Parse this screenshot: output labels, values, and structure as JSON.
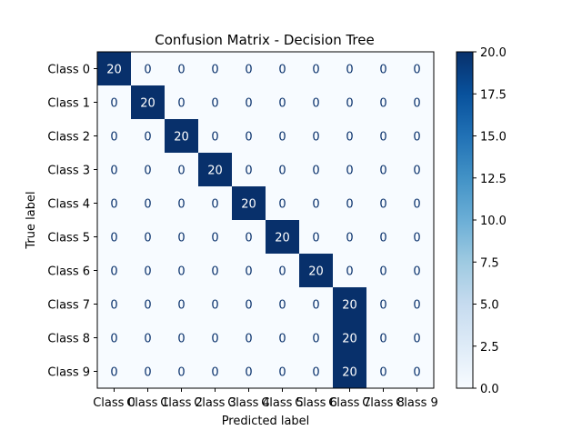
{
  "chart_data": {
    "type": "heatmap",
    "title": "Confusion Matrix - Decision Tree",
    "xlabel": "Predicted label",
    "ylabel": "True label",
    "x_categories": [
      "Class 0",
      "Class 1",
      "Class 2",
      "Class 3",
      "Class 4",
      "Class 5",
      "Class 6",
      "Class 7",
      "Class 8",
      "Class 9"
    ],
    "y_categories": [
      "Class 0",
      "Class 1",
      "Class 2",
      "Class 3",
      "Class 4",
      "Class 5",
      "Class 6",
      "Class 7",
      "Class 8",
      "Class 9"
    ],
    "matrix": [
      [
        20,
        0,
        0,
        0,
        0,
        0,
        0,
        0,
        0,
        0
      ],
      [
        0,
        20,
        0,
        0,
        0,
        0,
        0,
        0,
        0,
        0
      ],
      [
        0,
        0,
        20,
        0,
        0,
        0,
        0,
        0,
        0,
        0
      ],
      [
        0,
        0,
        0,
        20,
        0,
        0,
        0,
        0,
        0,
        0
      ],
      [
        0,
        0,
        0,
        0,
        20,
        0,
        0,
        0,
        0,
        0
      ],
      [
        0,
        0,
        0,
        0,
        0,
        20,
        0,
        0,
        0,
        0
      ],
      [
        0,
        0,
        0,
        0,
        0,
        0,
        20,
        0,
        0,
        0
      ],
      [
        0,
        0,
        0,
        0,
        0,
        0,
        0,
        20,
        0,
        0
      ],
      [
        0,
        0,
        0,
        0,
        0,
        0,
        0,
        20,
        0,
        0
      ],
      [
        0,
        0,
        0,
        0,
        0,
        0,
        0,
        20,
        0,
        0
      ]
    ],
    "colorbar": {
      "range": [
        0,
        20
      ],
      "ticks": [
        0.0,
        2.5,
        5.0,
        7.5,
        10.0,
        12.5,
        15.0,
        17.5,
        20.0
      ],
      "tick_labels": [
        "0.0",
        "2.5",
        "5.0",
        "7.5",
        "10.0",
        "12.5",
        "15.0",
        "17.5",
        "20.0"
      ]
    },
    "colors": {
      "low": "#f7fbff",
      "high": "#08306b",
      "text_on_dark": "#ffffff",
      "text_on_light": "#08306b"
    },
    "grid": false
  }
}
